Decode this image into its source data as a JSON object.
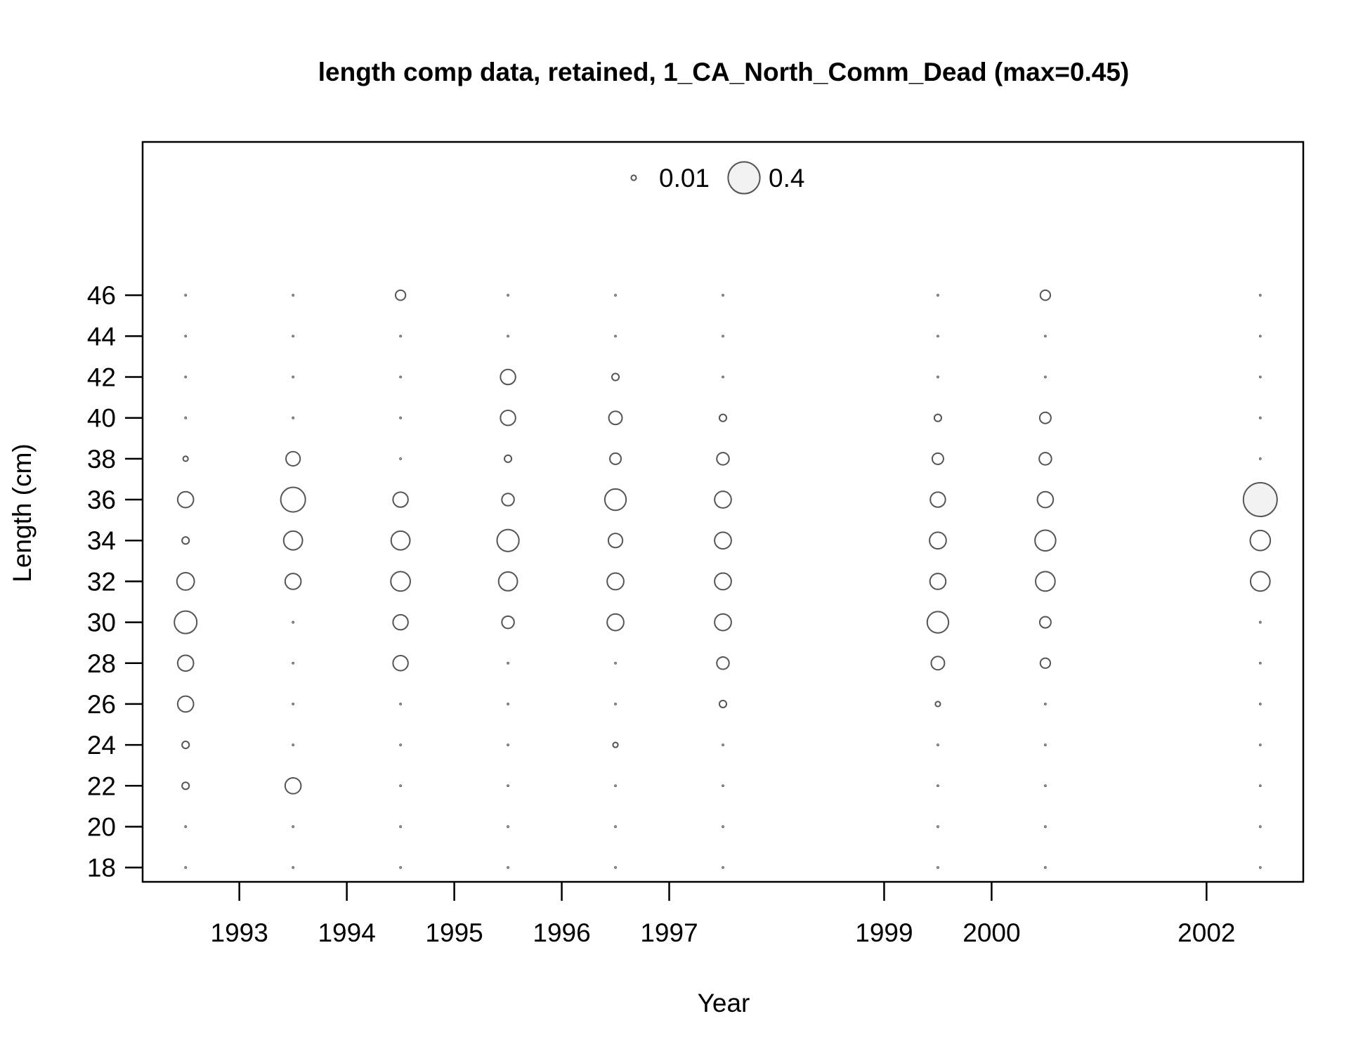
{
  "chart_data": {
    "type": "scatter",
    "subtype": "bubble",
    "title": "length comp data, retained, 1_CA_North_Comm_Dead (max=0.45)",
    "xlabel": "Year",
    "ylabel": "Length (cm)",
    "xlim": [
      1992.1,
      2002.9
    ],
    "ylim": [
      17.3,
      53.5
    ],
    "x_ticks": [
      1993,
      1994,
      1995,
      1996,
      1997,
      1999,
      2000,
      2002
    ],
    "x_tick_labels": [
      "1993",
      "1994",
      "1995",
      "1996",
      "1997",
      "1999",
      "2000",
      "2002"
    ],
    "y_ticks": [
      18,
      20,
      22,
      24,
      26,
      28,
      30,
      32,
      34,
      36,
      38,
      40,
      42,
      44,
      46
    ],
    "y_tick_labels": [
      "18",
      "20",
      "22",
      "24",
      "26",
      "28",
      "30",
      "32",
      "34",
      "36",
      "38",
      "40",
      "42",
      "44",
      "46"
    ],
    "legend": {
      "placement": "top-center",
      "entries": [
        {
          "label": "0.01",
          "value": 0.01
        },
        {
          "label": "0.4",
          "value": 0.4
        }
      ]
    },
    "max_value": 0.45,
    "lengths": [
      18,
      20,
      22,
      24,
      26,
      28,
      30,
      32,
      34,
      36,
      38,
      40,
      42,
      44,
      46
    ],
    "samples": [
      {
        "x": 1992.5,
        "values": [
          0,
          0,
          0.02,
          0.02,
          0.1,
          0.1,
          0.2,
          0.12,
          0.02,
          0.1,
          0.01,
          0,
          0,
          0,
          0
        ]
      },
      {
        "x": 1993.5,
        "values": [
          0,
          0,
          0.1,
          0,
          0,
          0,
          0,
          0.1,
          0.14,
          0.24,
          0.08,
          0,
          0,
          0,
          0
        ]
      },
      {
        "x": 1994.5,
        "values": [
          0,
          0,
          0,
          0,
          0,
          0.09,
          0.09,
          0.15,
          0.14,
          0.09,
          0,
          0,
          0,
          0,
          0.04
        ]
      },
      {
        "x": 1995.5,
        "values": [
          0,
          0,
          0,
          0,
          0,
          0,
          0.06,
          0.14,
          0.19,
          0.06,
          0.02,
          0.09,
          0.09,
          0,
          0
        ]
      },
      {
        "x": 1996.5,
        "values": [
          0,
          0,
          0,
          0.01,
          0,
          0,
          0.11,
          0.11,
          0.08,
          0.18,
          0.05,
          0.07,
          0.02,
          0,
          0
        ]
      },
      {
        "x": 1997.5,
        "values": [
          0,
          0,
          0,
          0,
          0.02,
          0.06,
          0.11,
          0.11,
          0.11,
          0.11,
          0.06,
          0.02,
          0,
          0,
          0
        ]
      },
      {
        "x": 1999.5,
        "values": [
          0,
          0,
          0,
          0,
          0.01,
          0.07,
          0.18,
          0.1,
          0.11,
          0.09,
          0.05,
          0.02,
          0,
          0,
          0
        ]
      },
      {
        "x": 2000.5,
        "values": [
          0,
          0,
          0,
          0,
          0,
          0.04,
          0.05,
          0.15,
          0.17,
          0.1,
          0.06,
          0.05,
          0,
          0,
          0.04
        ]
      },
      {
        "x": 2002.5,
        "values": [
          0,
          0,
          0,
          0,
          0,
          0,
          0,
          0.15,
          0.16,
          0.45,
          0,
          0,
          0,
          0,
          0
        ]
      }
    ],
    "grid": false,
    "colors": {
      "bubble_stroke": "#555555",
      "bubble_fill": "none",
      "largest_bubble_fill": "#f2f2f2",
      "axis": "#000000"
    }
  }
}
